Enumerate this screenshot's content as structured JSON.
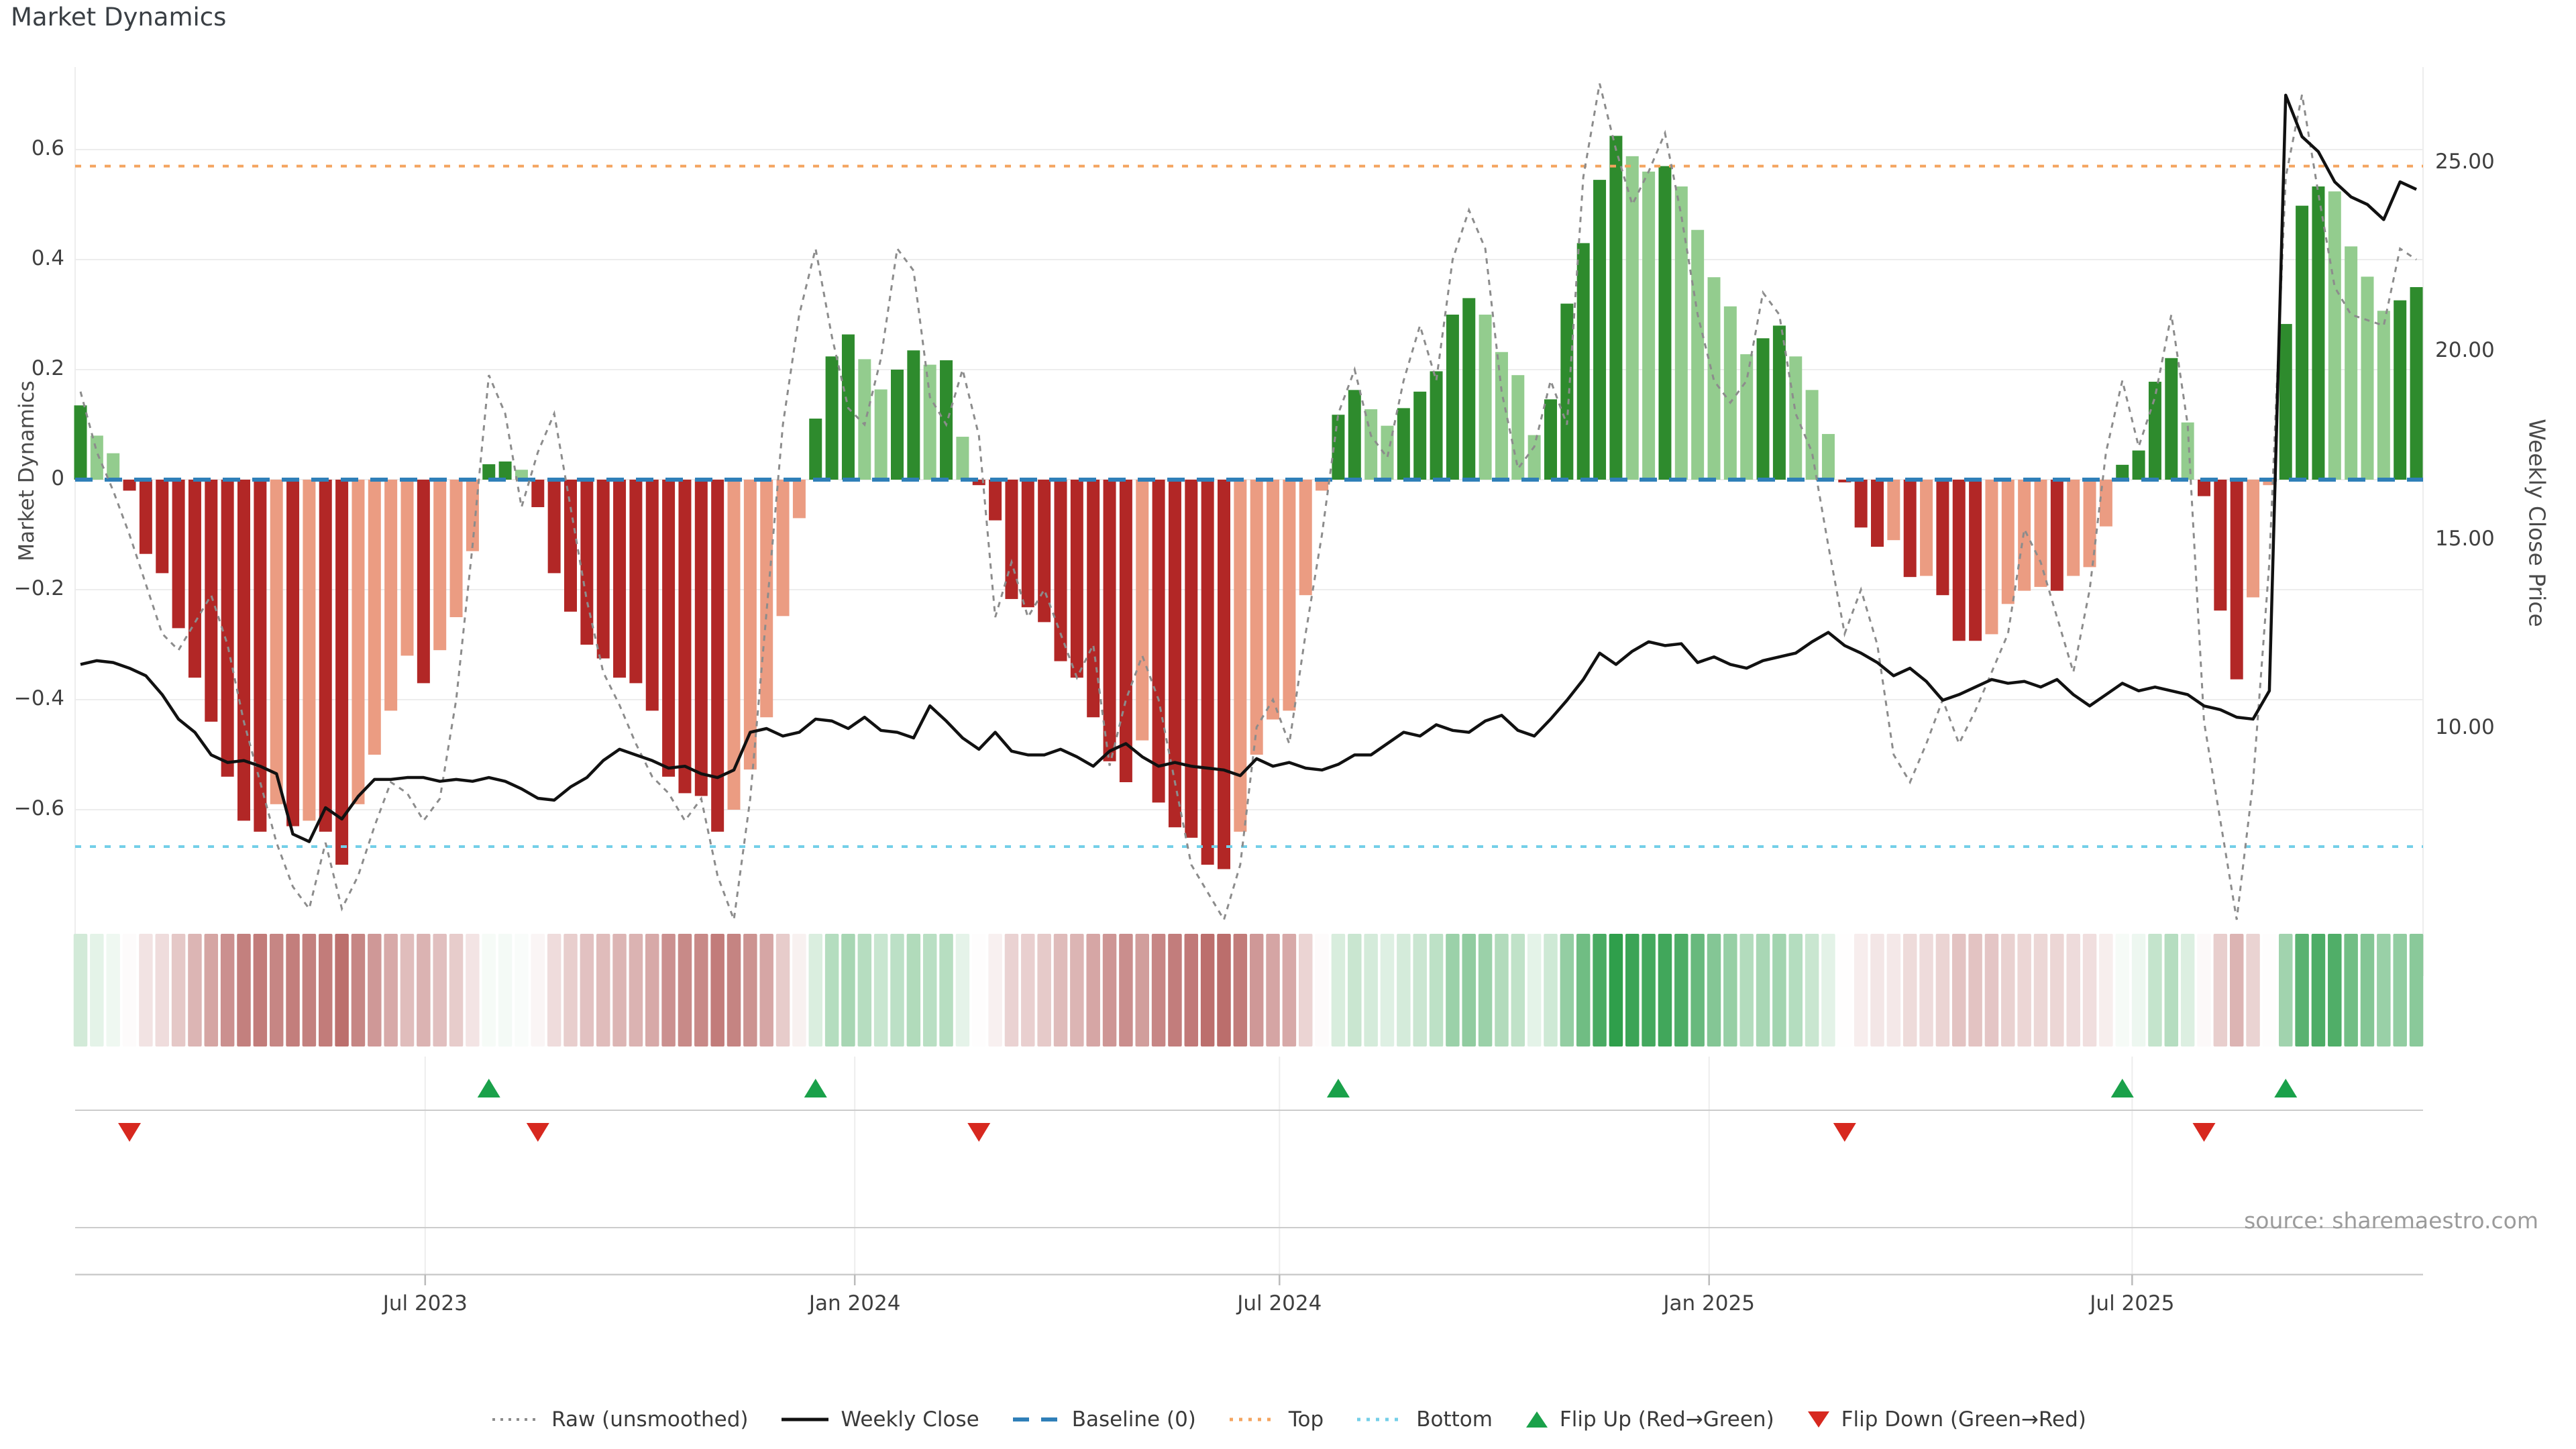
{
  "source": "source: sharemaestro.com",
  "legend": [
    {
      "label": "Raw (unsmoothed)",
      "icon": "dotted-gray-line",
      "color": "#8c8c8c"
    },
    {
      "label": "Weekly Close",
      "icon": "solid-black-line",
      "color": "#111111"
    },
    {
      "label": "Baseline (0)",
      "icon": "dashed-blue-line",
      "color": "#2f7fb8"
    },
    {
      "label": "Top",
      "icon": "dotted-orange-line",
      "color": "#f4a45f"
    },
    {
      "label": "Bottom",
      "icon": "dotted-cyan-line",
      "color": "#74cfe8"
    },
    {
      "label": "Flip Up (Red→Green)",
      "icon": "green-up-triangle",
      "color": "#1aa14a"
    },
    {
      "label": "Flip Down (Green→Red)",
      "icon": "red-down-triangle",
      "color": "#d7281f"
    }
  ],
  "chart_data": {
    "type": "bar",
    "title": "Market Dynamics",
    "xlabel": "",
    "left_axis": {
      "label": "Market Dynamics",
      "ticks": [
        0.6,
        0.4,
        0.2,
        0,
        -0.2,
        -0.4,
        -0.6
      ],
      "tick_labels": [
        "0.6",
        "0.4",
        "0.2",
        "0",
        "−0.2",
        "−0.4",
        "−0.6"
      ],
      "range": [
        -0.9,
        0.75
      ]
    },
    "right_axis": {
      "label": "Weekly Close Price",
      "ticks": [
        25,
        20,
        15,
        10
      ],
      "tick_labels": [
        "25.00",
        "20.00",
        "15.00",
        "10.00"
      ],
      "range": [
        3.4,
        27.5
      ]
    },
    "x_axis": {
      "unit": "weeks since 2023-02-03",
      "tick_weeks": [
        21.1,
        47.4,
        73.4,
        99.7,
        125.6
      ],
      "tick_labels": [
        "Jul 2023",
        "Jan 2024",
        "Jul 2024",
        "Jan 2025",
        "Jul 2025"
      ]
    },
    "reference_lines": {
      "baseline": 0,
      "top": 0.57,
      "bottom": -0.667
    },
    "series": [
      {
        "name": "Market Dynamics",
        "type": "bar",
        "axis": "left",
        "values": [
          0.135,
          0.08,
          0.048,
          -0.02,
          -0.135,
          -0.17,
          -0.27,
          -0.36,
          -0.44,
          -0.54,
          -0.62,
          -0.64,
          -0.59,
          -0.63,
          -0.62,
          -0.64,
          -0.7,
          -0.59,
          -0.5,
          -0.42,
          -0.32,
          -0.37,
          -0.31,
          -0.25,
          -0.13,
          0.028,
          0.033,
          0.018,
          -0.05,
          -0.17,
          -0.24,
          -0.3,
          -0.325,
          -0.36,
          -0.37,
          -0.42,
          -0.54,
          -0.57,
          -0.575,
          -0.64,
          -0.6,
          -0.527,
          -0.432,
          -0.248,
          -0.07,
          0.111,
          0.224,
          0.264,
          0.219,
          0.164,
          0.2,
          0.235,
          0.209,
          0.217,
          0.078,
          -0.01,
          -0.074,
          -0.217,
          -0.232,
          -0.259,
          -0.33,
          -0.36,
          -0.432,
          -0.512,
          -0.55,
          -0.474,
          -0.587,
          -0.632,
          -0.651,
          -0.7,
          -0.708,
          -0.64,
          -0.5,
          -0.436,
          -0.42,
          -0.21,
          -0.02,
          0.118,
          0.163,
          0.128,
          0.098,
          0.13,
          0.16,
          0.197,
          0.3,
          0.33,
          0.3,
          0.232,
          0.19,
          0.081,
          0.146,
          0.32,
          0.43,
          0.545,
          0.625,
          0.588,
          0.56,
          0.57,
          0.533,
          0.454,
          0.368,
          0.315,
          0.228,
          0.257,
          0.28,
          0.224,
          0.163,
          0.083,
          -0.005,
          -0.087,
          -0.122,
          -0.11,
          -0.177,
          -0.175,
          -0.21,
          -0.293,
          -0.293,
          -0.281,
          -0.226,
          -0.202,
          -0.195,
          -0.202,
          -0.175,
          -0.159,
          -0.085,
          0.027,
          0.053,
          0.178,
          0.221,
          0.104,
          -0.03,
          -0.238,
          -0.363,
          -0.214,
          -0.01,
          0.283,
          0.498,
          0.533,
          0.524,
          0.424,
          0.369,
          0.307,
          0.326,
          0.35
        ]
      },
      {
        "name": "Raw (unsmoothed)",
        "type": "line",
        "axis": "left",
        "values": [
          0.16,
          0.05,
          -0.02,
          -0.1,
          -0.19,
          -0.28,
          -0.31,
          -0.26,
          -0.21,
          -0.3,
          -0.44,
          -0.55,
          -0.66,
          -0.74,
          -0.78,
          -0.66,
          -0.78,
          -0.72,
          -0.63,
          -0.55,
          -0.57,
          -0.62,
          -0.58,
          -0.4,
          -0.12,
          0.19,
          0.12,
          -0.05,
          0.05,
          0.12,
          -0.05,
          -0.22,
          -0.35,
          -0.41,
          -0.48,
          -0.54,
          -0.57,
          -0.62,
          -0.58,
          -0.72,
          -0.8,
          -0.58,
          -0.24,
          0.1,
          0.3,
          0.42,
          0.26,
          0.13,
          0.1,
          0.22,
          0.42,
          0.38,
          0.15,
          0.1,
          0.2,
          0.08,
          -0.25,
          -0.15,
          -0.25,
          -0.2,
          -0.28,
          -0.36,
          -0.3,
          -0.52,
          -0.4,
          -0.32,
          -0.4,
          -0.55,
          -0.7,
          -0.75,
          -0.8,
          -0.7,
          -0.45,
          -0.4,
          -0.48,
          -0.28,
          -0.1,
          0.12,
          0.2,
          0.08,
          0.04,
          0.18,
          0.28,
          0.18,
          0.4,
          0.49,
          0.42,
          0.16,
          0.02,
          0.06,
          0.18,
          0.1,
          0.55,
          0.72,
          0.6,
          0.5,
          0.56,
          0.63,
          0.48,
          0.3,
          0.18,
          0.14,
          0.18,
          0.34,
          0.3,
          0.12,
          0.05,
          -0.12,
          -0.28,
          -0.2,
          -0.3,
          -0.5,
          -0.55,
          -0.48,
          -0.4,
          -0.48,
          -0.42,
          -0.35,
          -0.28,
          -0.09,
          -0.15,
          -0.25,
          -0.35,
          -0.2,
          0.05,
          0.18,
          0.06,
          0.15,
          0.3,
          0.1,
          -0.44,
          -0.62,
          -0.8,
          -0.55,
          -0.15,
          0.55,
          0.7,
          0.52,
          0.35,
          0.3,
          0.29,
          0.28,
          0.42,
          0.4
        ]
      },
      {
        "name": "Weekly Close",
        "type": "line",
        "axis": "right",
        "values": [
          11.7,
          11.8,
          11.75,
          11.6,
          11.4,
          10.9,
          10.25,
          9.9,
          9.3,
          9.1,
          9.15,
          9.0,
          8.8,
          7.2,
          7.0,
          7.9,
          7.6,
          8.2,
          8.65,
          8.65,
          8.7,
          8.7,
          8.6,
          8.65,
          8.6,
          8.7,
          8.6,
          8.4,
          8.15,
          8.1,
          8.45,
          8.7,
          9.15,
          9.45,
          9.3,
          9.15,
          8.95,
          9.0,
          8.8,
          8.7,
          8.9,
          9.9,
          10.0,
          9.8,
          9.9,
          10.25,
          10.2,
          10.0,
          10.3,
          9.95,
          9.9,
          9.75,
          10.6,
          10.2,
          9.75,
          9.45,
          9.9,
          9.4,
          9.3,
          9.3,
          9.45,
          9.25,
          9.0,
          9.4,
          9.6,
          9.25,
          9.0,
          9.1,
          9.0,
          8.95,
          8.9,
          8.75,
          9.2,
          9.0,
          9.1,
          8.95,
          8.9,
          9.05,
          9.3,
          9.3,
          9.6,
          9.9,
          9.8,
          10.1,
          9.95,
          9.9,
          10.2,
          10.35,
          9.95,
          9.8,
          10.25,
          10.75,
          11.3,
          12.0,
          11.7,
          12.05,
          12.3,
          12.2,
          12.25,
          11.75,
          11.9,
          11.7,
          11.6,
          11.8,
          11.9,
          12.0,
          12.3,
          12.55,
          12.2,
          12.0,
          11.75,
          11.4,
          11.6,
          11.25,
          10.75,
          10.9,
          11.1,
          11.3,
          11.2,
          11.25,
          11.1,
          11.3,
          10.9,
          10.6,
          10.9,
          11.2,
          11.0,
          11.1,
          11.0,
          10.9,
          10.6,
          10.5,
          10.3,
          10.25,
          11.0,
          26.8,
          25.7,
          25.3,
          24.5,
          24.1,
          23.9,
          23.5,
          24.5,
          24.3
        ]
      }
    ],
    "flip_up_weeks": [
      25,
      45,
      77,
      125,
      135
    ],
    "flip_down_weeks": [
      3,
      28,
      55,
      108,
      130
    ],
    "colors": {
      "bar_pos_strong": "#2e8b2d",
      "bar_pos_weak": "#93cc8e",
      "bar_neg_strong": "#b22726",
      "bar_neg_weak": "#eb9c82",
      "raw_line": "#8c8c8c",
      "price_line": "#111111",
      "baseline": "#2f7fb8",
      "top_line": "#f4a45f",
      "bottom_line": "#74cfe8",
      "flip_up": "#1aa14a",
      "flip_down": "#d7281f",
      "grid": "#ededed",
      "panel_line": "#cccccc",
      "heat_pos_max": [
        45,
        158,
        74
      ],
      "heat_neg_max": [
        183,
        101,
        99
      ]
    },
    "legend_position": "bottom-center",
    "grid": "horizontal-only"
  }
}
